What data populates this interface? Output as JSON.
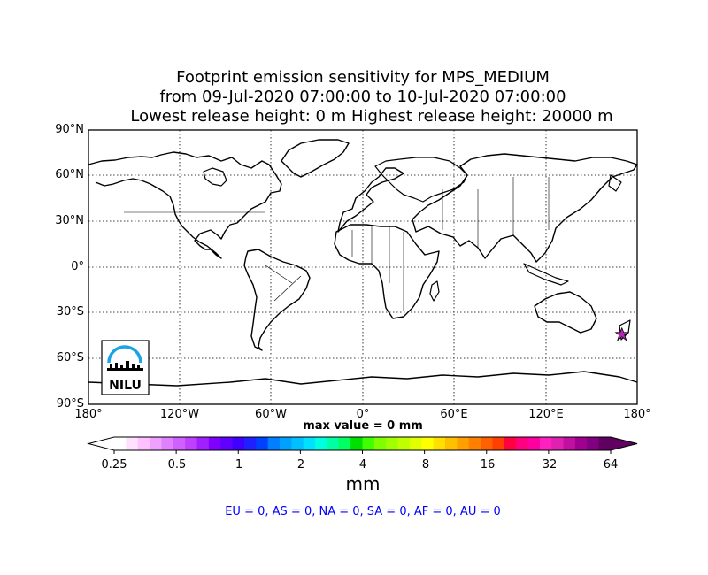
{
  "title": {
    "line1": "Footprint emission sensitivity for MPS_MEDIUM",
    "line2": "from 09-Jul-2020 07:00:00 to 10-Jul-2020 07:00:00",
    "line3": "Lowest release height: 0 m       Highest release height: 20000 m"
  },
  "map": {
    "lat_labels": [
      "90°N",
      "60°N",
      "30°N",
      "0°",
      "30°S",
      "60°S",
      "90°S"
    ],
    "lon_labels": [
      "180°",
      "120°W",
      "60°W",
      "0°",
      "60°E",
      "120°E",
      "180°"
    ],
    "marker_color": "#bb22bb",
    "logo_text": "NILU",
    "logo_icon": "nilu-logo-icon",
    "release_point": {
      "lon": 170,
      "lat": -44
    }
  },
  "max_value": "max value = 0 mm",
  "colorbar": {
    "ticks": [
      "0.25",
      "0.5",
      "1",
      "2",
      "4",
      "8",
      "16",
      "32",
      "64"
    ],
    "units": "mm",
    "colors": [
      "#ffffff",
      "#ffe0ff",
      "#ffc0ff",
      "#f0a0ff",
      "#e080ff",
      "#d060ff",
      "#c040ff",
      "#a020ff",
      "#8000ff",
      "#6000ff",
      "#4000ff",
      "#2020ff",
      "#0040ff",
      "#0080ff",
      "#00a0ff",
      "#00c0ff",
      "#00e0ff",
      "#00ffe0",
      "#00ffa0",
      "#00ff60",
      "#00e000",
      "#40ff00",
      "#80ff00",
      "#a0ff00",
      "#c0ff00",
      "#e0ff00",
      "#ffff00",
      "#ffe000",
      "#ffc000",
      "#ffa000",
      "#ff8000",
      "#ff6000",
      "#ff4000",
      "#ff0040",
      "#ff0080",
      "#ff00a0",
      "#ff20c0",
      "#e020b0",
      "#c010a0",
      "#a00090",
      "#800080",
      "#600060"
    ]
  },
  "regions": "EU = 0,  AS = 0,  NA = 0,  SA = 0,  AF = 0,  AU = 0"
}
